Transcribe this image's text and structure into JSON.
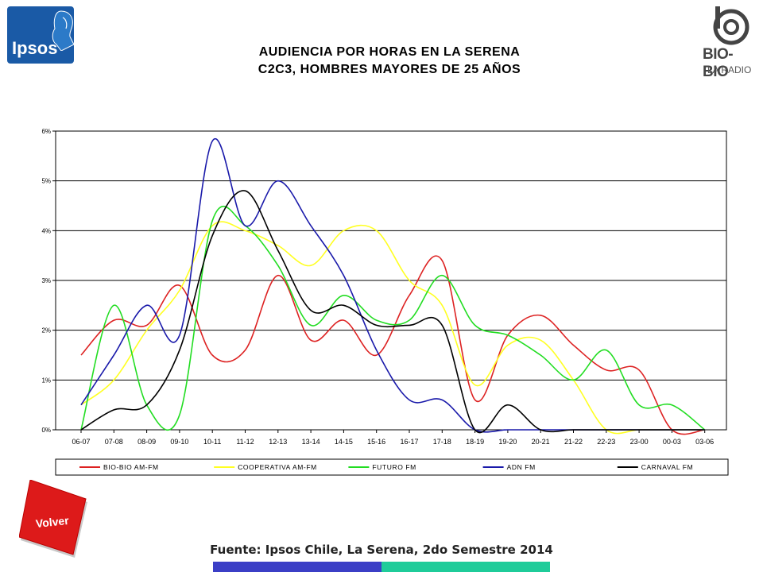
{
  "brand": {
    "ipsos_logo_text": "Ipsos",
    "biobio_name": "BIO-BIO",
    "biobio_sub": "LA RADIO"
  },
  "header": {
    "title_line1": "AUDIENCIA POR HORAS EN LA SERENA",
    "title_line2": "C2C3, HOMBRES MAYORES DE 25 AÑOS"
  },
  "footer": {
    "source": "Fuente: Ipsos Chile, La Serena, 2do Semestre 2014",
    "volver_label": "Volver",
    "colors": {
      "bar_left": "#3b3fc6",
      "bar_right": "#1fcc9a",
      "volver": "#dd1a1a"
    }
  },
  "chart_data": {
    "type": "line",
    "categories": [
      "06-07",
      "07-08",
      "08-09",
      "09-10",
      "10-11",
      "11-12",
      "12-13",
      "13-14",
      "14-15",
      "15-16",
      "16-17",
      "17-18",
      "18-19",
      "19-20",
      "20-21",
      "21-22",
      "22-23",
      "23-00",
      "00-03",
      "03-06"
    ],
    "yticks": [
      "0%",
      "1%",
      "2%",
      "3%",
      "4%",
      "5%",
      "6%"
    ],
    "ylim": [
      0,
      6
    ],
    "grid": true,
    "legend_position": "bottom",
    "series": [
      {
        "name": "BIO-BIO AM-FM",
        "color": "#dd2222",
        "values": [
          1.5,
          2.2,
          2.1,
          2.9,
          1.5,
          1.6,
          3.1,
          1.8,
          2.2,
          1.5,
          2.7,
          3.4,
          0.6,
          1.9,
          2.3,
          1.7,
          1.2,
          1.2,
          0,
          0
        ]
      },
      {
        "name": "COOPERATIVA AM-FM",
        "color": "#ffff22",
        "values": [
          0.5,
          1.0,
          2.0,
          2.8,
          4.1,
          4.0,
          3.7,
          3.3,
          4.0,
          4.0,
          3.0,
          2.5,
          0.9,
          1.7,
          1.8,
          1.0,
          0,
          0,
          0,
          0
        ]
      },
      {
        "name": "FUTURO FM",
        "color": "#22dd22",
        "values": [
          0,
          2.5,
          0.5,
          0.3,
          4.2,
          4.1,
          3.3,
          2.1,
          2.7,
          2.2,
          2.2,
          3.1,
          2.1,
          1.9,
          1.5,
          1.0,
          1.6,
          0.5,
          0.5,
          0
        ]
      },
      {
        "name": "ADN FM",
        "color": "#1a1aaa",
        "values": [
          0.5,
          1.5,
          2.5,
          1.9,
          5.8,
          4.1,
          5.0,
          4.1,
          3.1,
          1.6,
          0.6,
          0.6,
          0,
          0,
          0,
          0,
          0,
          0,
          0,
          0
        ]
      },
      {
        "name": "CARNAVAL FM",
        "color": "#000000",
        "values": [
          0,
          0.4,
          0.5,
          1.6,
          3.9,
          4.8,
          3.6,
          2.4,
          2.5,
          2.1,
          2.1,
          2.1,
          0,
          0.5,
          0,
          0,
          0,
          0,
          0,
          0
        ]
      }
    ]
  }
}
